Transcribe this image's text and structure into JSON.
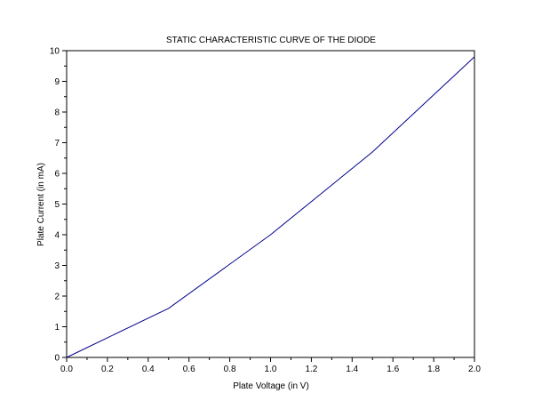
{
  "chart_data": {
    "type": "line",
    "title": "STATIC CHARACTERISTIC CURVE OF THE DIODE",
    "xlabel": "Plate Voltage (in V)",
    "ylabel": "Plate Current (in mA)",
    "xlim": [
      0,
      2
    ],
    "ylim": [
      0,
      10
    ],
    "x_ticks": [
      "0.0",
      "0.2",
      "0.4",
      "0.6",
      "0.8",
      "1.0",
      "1.2",
      "1.4",
      "1.6",
      "1.8",
      "2.0"
    ],
    "y_ticks": [
      "0",
      "1",
      "2",
      "3",
      "4",
      "5",
      "6",
      "7",
      "8",
      "9",
      "10"
    ],
    "grid": false,
    "series": [
      {
        "x": [
          0,
          0.5,
          1.0,
          1.5,
          2.0
        ],
        "y": [
          0,
          1.6,
          4.0,
          6.7,
          9.8
        ],
        "color": "#00008b"
      }
    ]
  }
}
